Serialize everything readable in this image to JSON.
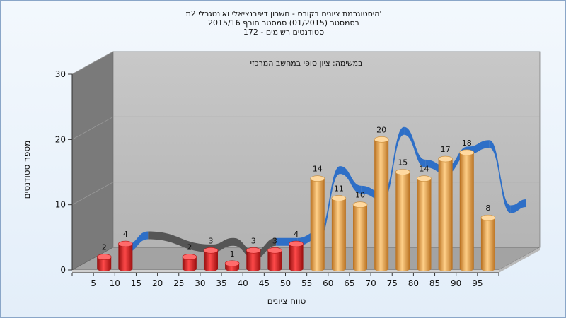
{
  "header": {
    "line1": "היסטוגרמת ציונים בקורס - חשבון דיפרנציאלי ואינטגרלי 2ת'",
    "line2": "בסמסטר (01/2015) סמסטר חורף 2015/16",
    "line3": "סטודנטים רשומים - 172"
  },
  "chart_data": {
    "type": "bar",
    "annotation": "במשימה: ציון סופי במחשב המרכזי",
    "xlabel": "טווח ציונים",
    "ylabel": "מספר סטודנטים",
    "ylim": [
      0,
      30
    ],
    "yticks": [
      0,
      10,
      20,
      30
    ],
    "categories": [
      "5",
      "10",
      "15",
      "20",
      "25",
      "30",
      "35",
      "40",
      "45",
      "50",
      "55",
      "60",
      "65",
      "70",
      "75",
      "80",
      "85",
      "90",
      "95"
    ],
    "bars": [
      {
        "x": 7.5,
        "value": 2,
        "color": "red"
      },
      {
        "x": 12.5,
        "value": 4,
        "color": "red"
      },
      {
        "x": 27.5,
        "value": 2,
        "color": "red"
      },
      {
        "x": 32.5,
        "value": 3,
        "color": "red"
      },
      {
        "x": 37.5,
        "value": 1,
        "color": "red"
      },
      {
        "x": 42.5,
        "value": 3,
        "color": "red"
      },
      {
        "x": 47.5,
        "value": 3,
        "color": "red"
      },
      {
        "x": 52.5,
        "value": 4,
        "color": "red"
      },
      {
        "x": 57.5,
        "value": 14,
        "color": "orange"
      },
      {
        "x": 62.5,
        "value": 11,
        "color": "orange"
      },
      {
        "x": 67.5,
        "value": 10,
        "color": "orange"
      },
      {
        "x": 72.5,
        "value": 20,
        "color": "orange"
      },
      {
        "x": 77.5,
        "value": 15,
        "color": "orange"
      },
      {
        "x": 82.5,
        "value": 14,
        "color": "orange"
      },
      {
        "x": 87.5,
        "value": 17,
        "color": "orange"
      },
      {
        "x": 92.5,
        "value": 18,
        "color": "orange"
      },
      {
        "x": 97.5,
        "value": 8,
        "color": "orange"
      }
    ],
    "colors": {
      "red": "#dd1c1c",
      "orange": "#e8a44a",
      "ribbon_blue": "#2e6fc7",
      "ribbon_gray": "#555555",
      "wall": "#bdbdbd",
      "side": "#7a7a7a",
      "floor": "#9b9b9b"
    }
  }
}
